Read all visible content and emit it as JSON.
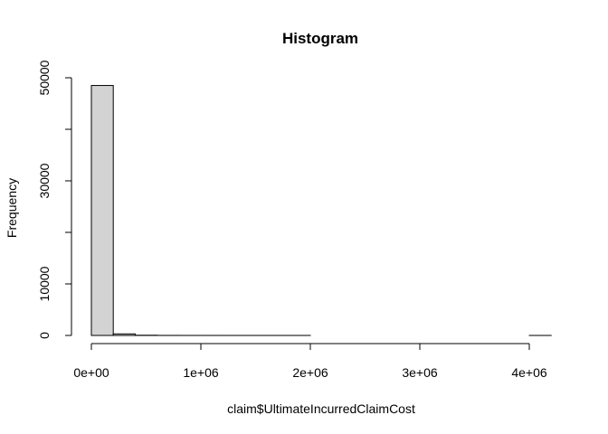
{
  "chart_data": {
    "type": "bar",
    "subtype": "histogram",
    "title": "Histogram",
    "xlabel": "claim$UltimateIncurredClaimCost",
    "ylabel": "Frequency",
    "bin_width": 200000,
    "bins": [
      {
        "start": 0,
        "end": 200000,
        "count": 48500
      },
      {
        "start": 200000,
        "end": 400000,
        "count": 300
      },
      {
        "start": 400000,
        "end": 600000,
        "count": 40
      },
      {
        "start": 600000,
        "end": 800000,
        "count": 10
      },
      {
        "start": 800000,
        "end": 1000000,
        "count": 5
      },
      {
        "start": 1000000,
        "end": 1200000,
        "count": 3
      },
      {
        "start": 1200000,
        "end": 1400000,
        "count": 2
      },
      {
        "start": 1400000,
        "end": 1600000,
        "count": 1
      },
      {
        "start": 1600000,
        "end": 1800000,
        "count": 1
      },
      {
        "start": 1800000,
        "end": 2000000,
        "count": 1
      },
      {
        "start": 2000000,
        "end": 2200000,
        "count": 0
      },
      {
        "start": 2200000,
        "end": 2400000,
        "count": 0
      },
      {
        "start": 2400000,
        "end": 2600000,
        "count": 0
      },
      {
        "start": 2600000,
        "end": 2800000,
        "count": 0
      },
      {
        "start": 2800000,
        "end": 3000000,
        "count": 0
      },
      {
        "start": 3000000,
        "end": 3200000,
        "count": 0
      },
      {
        "start": 3200000,
        "end": 3400000,
        "count": 0
      },
      {
        "start": 3400000,
        "end": 3600000,
        "count": 0
      },
      {
        "start": 3600000,
        "end": 3800000,
        "count": 0
      },
      {
        "start": 3800000,
        "end": 4000000,
        "count": 0
      },
      {
        "start": 4000000,
        "end": 4200000,
        "count": 1
      }
    ],
    "xlim": [
      0,
      4200000
    ],
    "ylim": [
      0,
      48500
    ],
    "x_ticks": [
      {
        "value": 0,
        "label": "0e+00"
      },
      {
        "value": 1000000,
        "label": "1e+06"
      },
      {
        "value": 2000000,
        "label": "2e+06"
      },
      {
        "value": 3000000,
        "label": "3e+06"
      },
      {
        "value": 4000000,
        "label": "4e+06"
      }
    ],
    "y_ticks": [
      {
        "value": 0,
        "label": "0"
      },
      {
        "value": 10000,
        "label": "10000"
      },
      {
        "value": 30000,
        "label": "30000"
      },
      {
        "value": 50000,
        "label": "50000"
      }
    ],
    "y_minor_ticks": [
      20000,
      40000
    ],
    "bar_color": "#d3d3d3",
    "bar_border_color": "#000000",
    "grid": false,
    "legend": "none"
  }
}
